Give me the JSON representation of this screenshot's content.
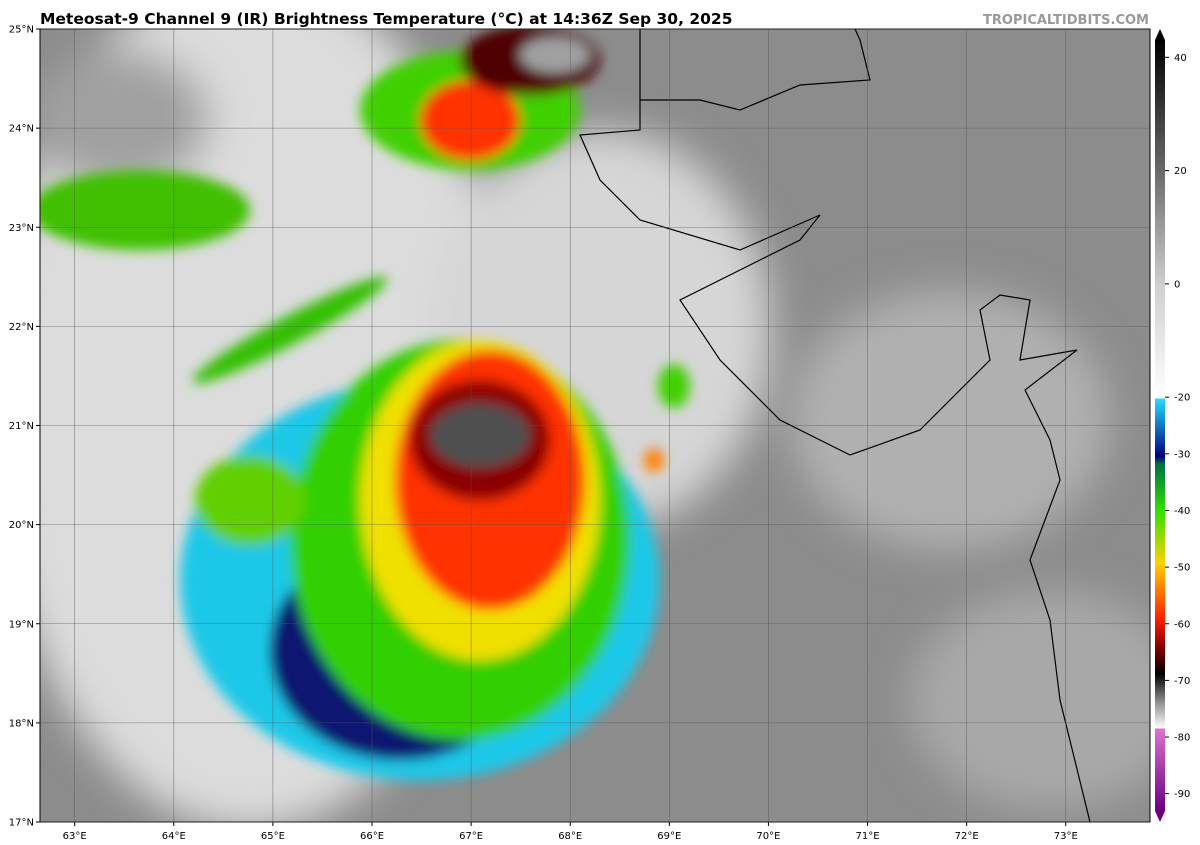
{
  "map": {
    "title": "Meteosat-9 Channel 9 (IR) Brightness Temperature (°C) at 14:36Z Sep 30, 2025",
    "credit": "TROPICALTIDBITS.COM",
    "xlim": [
      62.65,
      73.85
    ],
    "ylim": [
      17,
      25
    ],
    "xticks": [
      {
        "value": 63,
        "label": "63°E"
      },
      {
        "value": 64,
        "label": "64°E"
      },
      {
        "value": 65,
        "label": "65°E"
      },
      {
        "value": 66,
        "label": "66°E"
      },
      {
        "value": 67,
        "label": "67°E"
      },
      {
        "value": 68,
        "label": "68°E"
      },
      {
        "value": 69,
        "label": "69°E"
      },
      {
        "value": 70,
        "label": "70°E"
      },
      {
        "value": 71,
        "label": "71°E"
      },
      {
        "value": 72,
        "label": "72°E"
      },
      {
        "value": 73,
        "label": "73°E"
      }
    ],
    "yticks": [
      {
        "value": 17,
        "label": "17°N"
      },
      {
        "value": 18,
        "label": "18°N"
      },
      {
        "value": 19,
        "label": "19°N"
      },
      {
        "value": 20,
        "label": "20°N"
      },
      {
        "value": 21,
        "label": "21°N"
      },
      {
        "value": 22,
        "label": "22°N"
      },
      {
        "value": 23,
        "label": "23°N"
      },
      {
        "value": 24,
        "label": "24°N"
      },
      {
        "value": 25,
        "label": "25°N"
      }
    ],
    "colorbar": {
      "lim": [
        -95,
        45
      ],
      "ticks": [
        40,
        20,
        0,
        -20,
        -30,
        -40,
        -50,
        -60,
        -70,
        -80,
        -90
      ]
    }
  }
}
